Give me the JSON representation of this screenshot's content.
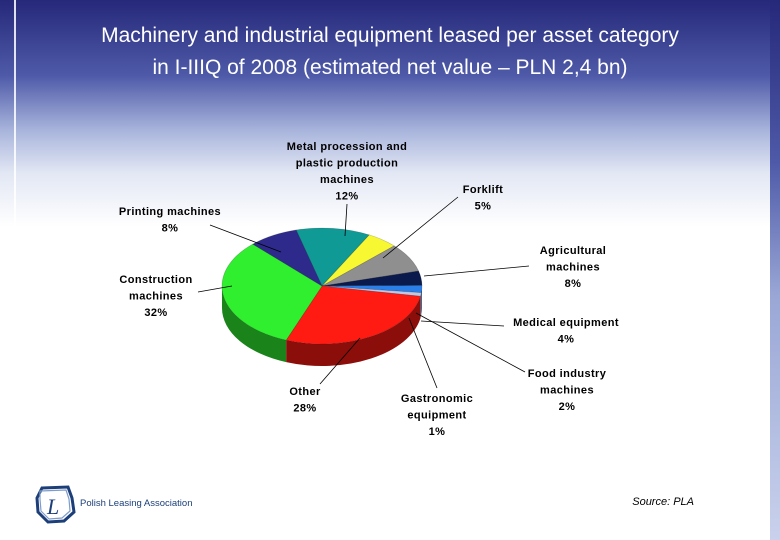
{
  "slide": {
    "title_line1": "Machinery and industrial equipment leased per asset category",
    "title_line2": "in I-IIIQ of 2008 (estimated net value – PLN 2,4 bn)",
    "source": "Source: PLA",
    "logo_text": "Polish Leasing Association"
  },
  "chart_data": {
    "type": "pie",
    "title": "",
    "three_d": true,
    "slices": [
      {
        "label": [
          "Metal procession and",
          "plastic production",
          "machines"
        ],
        "value_label": "12%",
        "value": 12,
        "color": "#0f9a96"
      },
      {
        "label": [
          "Forklift"
        ],
        "value_label": "5%",
        "value": 5,
        "color": "#f8f832"
      },
      {
        "label": [
          "Agricultural",
          "machines"
        ],
        "value_label": "8%",
        "value": 8,
        "color": "#8f8f8f"
      },
      {
        "label": [
          "Medical equipment"
        ],
        "value_label": "4%",
        "value": 4,
        "color": "#0a1a4c"
      },
      {
        "label": [
          "Food industry",
          "machines"
        ],
        "value_label": "2%",
        "value": 2,
        "color": "#2a7fe8"
      },
      {
        "label": [
          "Gastronomic",
          "equipment"
        ],
        "value_label": "1%",
        "value": 1,
        "color": "#bfc7e4"
      },
      {
        "label": [
          "Other"
        ],
        "value_label": "28%",
        "value": 28,
        "color": "#ff1a12"
      },
      {
        "label": [
          "Construction",
          "machines"
        ],
        "value_label": "32%",
        "value": 32,
        "color": "#2fef2f"
      },
      {
        "label": [
          "Printing machines"
        ],
        "value_label": "8%",
        "value": 8,
        "color": "#2d2a8c"
      }
    ]
  }
}
